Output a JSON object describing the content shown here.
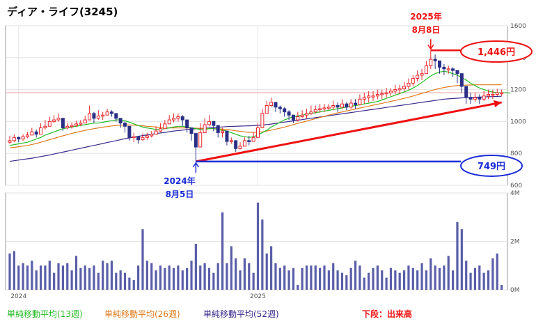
{
  "title": "ディア・ライフ(3245)",
  "colors": {
    "up": "#e8262a",
    "down": "#2a2f86",
    "ma13": "#22bb22",
    "ma26": "#e07a1e",
    "ma52": "#3a2a8c",
    "volume": "#5a5ea8",
    "ref_line": "#e89a9a",
    "trend": "#ee1111",
    "low_callout": "#1a2bd6",
    "high_callout": "#ee1111"
  },
  "legend": {
    "ma13": "単純移動平均(13週)",
    "ma26": "単純移動平均(26週)",
    "ma52": "単純移動平均(52週)",
    "volume_note": "下段：出来高"
  },
  "annotations": {
    "high_date_year": "2025年",
    "high_date_md": "8月8日",
    "high_value": "1,446円",
    "low_date_year": "2024年",
    "low_date_md": "8月5日",
    "low_value": "749円"
  },
  "chart_data": [
    {
      "type": "candlestick",
      "title": "ディア・ライフ(3245)",
      "x_labels": [
        "2024",
        "2025"
      ],
      "x_label_weeks": [
        2,
        56
      ],
      "ylim": [
        600,
        1600
      ],
      "y_ticks": [
        "600",
        "800",
        "1000",
        "1200",
        "1400",
        "1600"
      ],
      "y_tick_values": [
        600,
        800,
        1000,
        1200,
        1400,
        1600
      ],
      "reference_line": 1180,
      "close": [
        880,
        900,
        890,
        905,
        915,
        935,
        920,
        960,
        970,
        1000,
        1010,
        1020,
        960,
        970,
        975,
        985,
        990,
        1010,
        1050,
        1020,
        1035,
        1040,
        1060,
        1050,
        1020,
        990,
        970,
        900,
        905,
        885,
        900,
        910,
        920,
        940,
        955,
        985,
        1010,
        1020,
        1030,
        1010,
        960,
        925,
        840,
        930,
        980,
        1000,
        975,
        930,
        940,
        875,
        880,
        830,
        845,
        880,
        875,
        900,
        960,
        1050,
        1100,
        1120,
        1090,
        1080,
        1060,
        1040,
        1010,
        1030,
        1040,
        1050,
        1060,
        1075,
        1080,
        1085,
        1090,
        1100,
        1090,
        1110,
        1090,
        1115,
        1105,
        1140,
        1150,
        1160,
        1160,
        1170,
        1175,
        1180,
        1190,
        1200,
        1205,
        1220,
        1240,
        1270,
        1290,
        1300,
        1350,
        1390,
        1380,
        1340,
        1330,
        1330,
        1320,
        1300,
        1220,
        1150,
        1140,
        1150,
        1140,
        1160,
        1170,
        1170,
        1180,
        1180
      ],
      "high": [
        910,
        920,
        905,
        920,
        935,
        960,
        950,
        990,
        1010,
        1030,
        1040,
        1050,
        990,
        990,
        995,
        1005,
        1010,
        1035,
        1100,
        1060,
        1070,
        1060,
        1080,
        1070,
        1050,
        1020,
        1000,
        960,
        930,
        910,
        925,
        930,
        940,
        970,
        990,
        1010,
        1040,
        1050,
        1050,
        1040,
        1000,
        960,
        900,
        990,
        1020,
        1040,
        1000,
        960,
        960,
        905,
        900,
        860,
        870,
        900,
        910,
        930,
        990,
        1080,
        1130,
        1150,
        1120,
        1100,
        1090,
        1070,
        1040,
        1060,
        1070,
        1080,
        1100,
        1100,
        1110,
        1110,
        1110,
        1130,
        1120,
        1140,
        1120,
        1140,
        1140,
        1170,
        1180,
        1190,
        1190,
        1200,
        1200,
        1210,
        1210,
        1230,
        1230,
        1250,
        1270,
        1290,
        1320,
        1330,
        1380,
        1446,
        1420,
        1380,
        1360,
        1350,
        1340,
        1320,
        1260,
        1200,
        1180,
        1180,
        1170,
        1190,
        1200,
        1200,
        1205,
        1200
      ],
      "low": [
        860,
        870,
        870,
        880,
        895,
        915,
        900,
        935,
        950,
        970,
        990,
        1000,
        940,
        950,
        955,
        965,
        970,
        990,
        1020,
        990,
        1010,
        1010,
        1040,
        1030,
        1000,
        960,
        930,
        880,
        870,
        860,
        880,
        885,
        900,
        920,
        935,
        960,
        985,
        995,
        1000,
        970,
        930,
        880,
        749,
        900,
        950,
        970,
        940,
        900,
        900,
        850,
        860,
        810,
        825,
        850,
        850,
        880,
        930,
        1000,
        1060,
        1090,
        1060,
        1050,
        1030,
        1010,
        990,
        1000,
        1020,
        1020,
        1040,
        1050,
        1055,
        1060,
        1070,
        1070,
        1060,
        1080,
        1070,
        1080,
        1080,
        1100,
        1110,
        1120,
        1130,
        1140,
        1140,
        1150,
        1160,
        1170,
        1170,
        1190,
        1200,
        1220,
        1250,
        1260,
        1300,
        1330,
        1330,
        1300,
        1290,
        1300,
        1280,
        1240,
        1180,
        1110,
        1110,
        1120,
        1110,
        1130,
        1140,
        1140,
        1160,
        1160
      ],
      "ma13": [
        850,
        855,
        860,
        865,
        870,
        880,
        890,
        900,
        915,
        925,
        935,
        945,
        955,
        960,
        965,
        970,
        975,
        980,
        985,
        990,
        990,
        995,
        1000,
        1005,
        1010,
        1010,
        1005,
        995,
        985,
        975,
        965,
        960,
        955,
        950,
        950,
        955,
        960,
        965,
        970,
        970,
        965,
        960,
        955,
        950,
        950,
        955,
        955,
        950,
        945,
        940,
        930,
        920,
        910,
        905,
        900,
        905,
        915,
        930,
        945,
        965,
        980,
        995,
        1010,
        1020,
        1030,
        1035,
        1040,
        1045,
        1050,
        1055,
        1060,
        1065,
        1070,
        1075,
        1080,
        1085,
        1090,
        1095,
        1100,
        1105,
        1110,
        1115,
        1120,
        1125,
        1135,
        1145,
        1155,
        1165,
        1175,
        1185,
        1195,
        1210,
        1225,
        1245,
        1265,
        1285,
        1300,
        1310,
        1315,
        1310,
        1300,
        1290,
        1275,
        1260,
        1240,
        1225,
        1210,
        1200,
        1190,
        1185,
        1180,
        1180,
        1180,
        1178
      ],
      "ma26": [
        835,
        838,
        842,
        846,
        850,
        856,
        862,
        870,
        878,
        886,
        894,
        902,
        910,
        918,
        925,
        932,
        938,
        944,
        950,
        955,
        960,
        964,
        968,
        972,
        975,
        977,
        978,
        978,
        977,
        975,
        973,
        970,
        968,
        965,
        963,
        962,
        960,
        960,
        960,
        960,
        960,
        960,
        958,
        957,
        956,
        956,
        955,
        954,
        952,
        950,
        946,
        942,
        938,
        935,
        932,
        932,
        933,
        935,
        940,
        946,
        952,
        958,
        965,
        972,
        980,
        988,
        995,
        1002,
        1010,
        1018,
        1025,
        1032,
        1040,
        1047,
        1054,
        1060,
        1066,
        1072,
        1078,
        1084,
        1090,
        1096,
        1102,
        1108,
        1114,
        1120,
        1126,
        1132,
        1138,
        1145,
        1152,
        1160,
        1168,
        1176,
        1184,
        1192,
        1200,
        1207,
        1213,
        1218,
        1222,
        1225,
        1227,
        1228,
        1229,
        1230,
        1230,
        1230,
        1230,
        1230,
        1230,
        1230
      ],
      "ma52": [
        750,
        754,
        758,
        762,
        766,
        770,
        775,
        780,
        785,
        790,
        796,
        802,
        808,
        814,
        820,
        826,
        832,
        838,
        844,
        850,
        856,
        862,
        868,
        874,
        880,
        886,
        892,
        897,
        902,
        907,
        912,
        916,
        920,
        924,
        928,
        932,
        936,
        940,
        943,
        946,
        949,
        952,
        954,
        956,
        958,
        960,
        962,
        964,
        966,
        968,
        969,
        970,
        971,
        972,
        973,
        974,
        976,
        978,
        981,
        984,
        988,
        992,
        996,
        1000,
        1004,
        1008,
        1012,
        1016,
        1020,
        1024,
        1028,
        1032,
        1036,
        1040,
        1044,
        1048,
        1052,
        1056,
        1060,
        1064,
        1068,
        1072,
        1076,
        1080,
        1084,
        1088,
        1092,
        1096,
        1100,
        1104,
        1108,
        1112,
        1116,
        1120,
        1124,
        1128,
        1132,
        1136,
        1140,
        1142,
        1144,
        1146,
        1148,
        1150,
        1151,
        1152,
        1153,
        1154,
        1155,
        1156,
        1157,
        1158
      ],
      "trendline": {
        "from_week": 42,
        "from_price": 749,
        "to_week": 111,
        "to_price": 1120
      },
      "high_marker": {
        "week": 95,
        "price": 1446
      },
      "low_marker": {
        "week": 42,
        "price": 749
      }
    },
    {
      "type": "bar",
      "title": "下段：出来高",
      "ylim": [
        0,
        4000000
      ],
      "y_ticks": [
        "0M",
        "2M",
        "4M"
      ],
      "y_tick_values": [
        0,
        2000000,
        4000000
      ],
      "values": [
        1500000,
        1600000,
        1000000,
        1100000,
        1000000,
        1200000,
        800000,
        1000000,
        1000000,
        1200000,
        700000,
        1100000,
        1000000,
        1100000,
        800000,
        1400000,
        900000,
        1000000,
        900000,
        1000000,
        700000,
        1200000,
        1100000,
        1200000,
        700000,
        800000,
        700000,
        500000,
        400000,
        1000000,
        2500000,
        1200000,
        1100000,
        800000,
        1000000,
        900000,
        1000000,
        900000,
        1000000,
        800000,
        900000,
        1200000,
        1900000,
        1000000,
        1100000,
        900000,
        700000,
        1100000,
        3200000,
        1100000,
        1800000,
        1300000,
        800000,
        1300000,
        1100000,
        700000,
        3600000,
        2900000,
        1500000,
        1800000,
        1100000,
        900000,
        1000000,
        800000,
        900000,
        200000,
        900000,
        1000000,
        1000000,
        1000000,
        900000,
        1000000,
        800000,
        1100000,
        800000,
        700000,
        600000,
        900000,
        1200000,
        1000000,
        500000,
        700000,
        900000,
        1000000,
        800000,
        500000,
        900000,
        800000,
        700000,
        800000,
        1000000,
        900000,
        800000,
        1100000,
        800000,
        1300000,
        1000000,
        900000,
        1000000,
        1400000,
        800000,
        2800000,
        2500000,
        1200000,
        700000,
        900000,
        1000000,
        700000,
        800000,
        1300000,
        1500000,
        200000
      ]
    }
  ]
}
